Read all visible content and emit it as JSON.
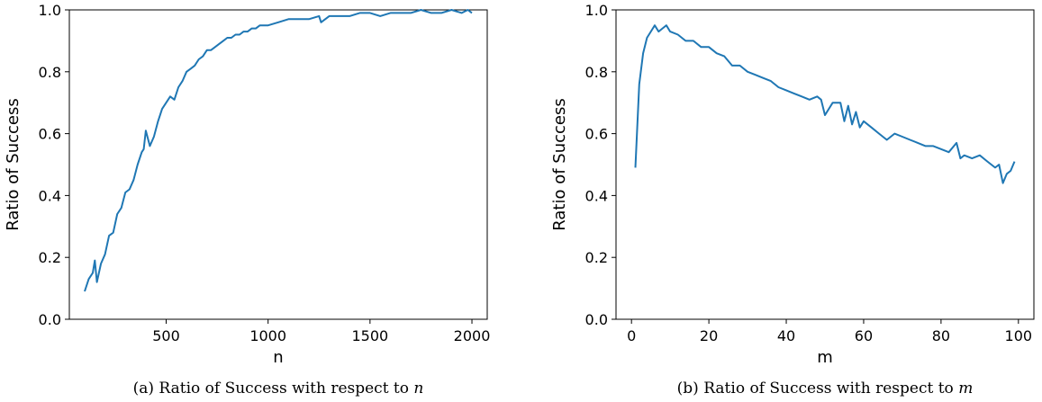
{
  "chart_data": [
    {
      "type": "line",
      "caption": "(a) Ratio of Success with respect to",
      "caption_var": "n",
      "xlabel": "n",
      "ylabel": "Ratio of Success",
      "xlim": [
        25,
        2075
      ],
      "ylim": [
        0.0,
        1.0
      ],
      "xticks": [
        500,
        1000,
        1500,
        2000
      ],
      "xtick_labels": [
        "500",
        "1000",
        "1500",
        "2000"
      ],
      "yticks": [
        0.0,
        0.2,
        0.4,
        0.6,
        0.8,
        1.0
      ],
      "ytick_labels": [
        "0.0",
        "0.2",
        "0.4",
        "0.6",
        "0.8",
        "1.0"
      ],
      "grid": false,
      "line_color": "#1f77b4",
      "series": [
        {
          "x": [
            100,
            120,
            140,
            150,
            160,
            180,
            200,
            220,
            240,
            260,
            280,
            300,
            320,
            340,
            360,
            380,
            390,
            400,
            420,
            440,
            460,
            480,
            500,
            520,
            540,
            560,
            580,
            600,
            620,
            640,
            660,
            680,
            700,
            720,
            740,
            760,
            780,
            800,
            820,
            840,
            860,
            880,
            900,
            920,
            940,
            960,
            980,
            1000,
            1050,
            1100,
            1150,
            1200,
            1250,
            1260,
            1300,
            1350,
            1400,
            1450,
            1500,
            1550,
            1600,
            1650,
            1700,
            1750,
            1800,
            1850,
            1900,
            1950,
            1980,
            2000
          ],
          "y": [
            0.09,
            0.13,
            0.15,
            0.19,
            0.12,
            0.18,
            0.21,
            0.27,
            0.28,
            0.34,
            0.36,
            0.41,
            0.42,
            0.45,
            0.5,
            0.54,
            0.55,
            0.61,
            0.56,
            0.59,
            0.64,
            0.68,
            0.7,
            0.72,
            0.71,
            0.75,
            0.77,
            0.8,
            0.81,
            0.82,
            0.84,
            0.85,
            0.87,
            0.87,
            0.88,
            0.89,
            0.9,
            0.91,
            0.91,
            0.92,
            0.92,
            0.93,
            0.93,
            0.94,
            0.94,
            0.95,
            0.95,
            0.95,
            0.96,
            0.97,
            0.97,
            0.97,
            0.98,
            0.96,
            0.98,
            0.98,
            0.98,
            0.99,
            0.99,
            0.98,
            0.99,
            0.99,
            0.99,
            1.0,
            0.99,
            0.99,
            1.0,
            0.99,
            1.0,
            0.99
          ]
        }
      ]
    },
    {
      "type": "line",
      "caption": "(b) Ratio of Success with respect to",
      "caption_var": "m",
      "xlabel": "m",
      "ylabel": "Ratio of Success",
      "xlim": [
        -4,
        104
      ],
      "ylim": [
        0.0,
        1.0
      ],
      "xticks": [
        0,
        20,
        40,
        60,
        80,
        100
      ],
      "xtick_labels": [
        "0",
        "20",
        "40",
        "60",
        "80",
        "100"
      ],
      "yticks": [
        0.0,
        0.2,
        0.4,
        0.6,
        0.8,
        1.0
      ],
      "ytick_labels": [
        "0.0",
        "0.2",
        "0.4",
        "0.6",
        "0.8",
        "1.0"
      ],
      "grid": false,
      "line_color": "#1f77b4",
      "series": [
        {
          "x": [
            1,
            2,
            3,
            4,
            5,
            6,
            7,
            8,
            9,
            10,
            12,
            14,
            16,
            18,
            20,
            22,
            24,
            26,
            28,
            30,
            32,
            34,
            36,
            38,
            40,
            42,
            44,
            46,
            48,
            49,
            50,
            52,
            54,
            55,
            56,
            57,
            58,
            59,
            60,
            62,
            64,
            66,
            68,
            70,
            72,
            74,
            76,
            78,
            80,
            82,
            84,
            85,
            86,
            88,
            90,
            92,
            94,
            95,
            96,
            97,
            98,
            99
          ],
          "y": [
            0.49,
            0.76,
            0.86,
            0.91,
            0.93,
            0.95,
            0.93,
            0.94,
            0.95,
            0.93,
            0.92,
            0.9,
            0.9,
            0.88,
            0.88,
            0.86,
            0.85,
            0.82,
            0.82,
            0.8,
            0.79,
            0.78,
            0.77,
            0.75,
            0.74,
            0.73,
            0.72,
            0.71,
            0.72,
            0.71,
            0.66,
            0.7,
            0.7,
            0.64,
            0.69,
            0.63,
            0.67,
            0.62,
            0.64,
            0.62,
            0.6,
            0.58,
            0.6,
            0.59,
            0.58,
            0.57,
            0.56,
            0.56,
            0.55,
            0.54,
            0.57,
            0.52,
            0.53,
            0.52,
            0.53,
            0.51,
            0.49,
            0.5,
            0.44,
            0.47,
            0.48,
            0.51
          ]
        }
      ]
    }
  ]
}
